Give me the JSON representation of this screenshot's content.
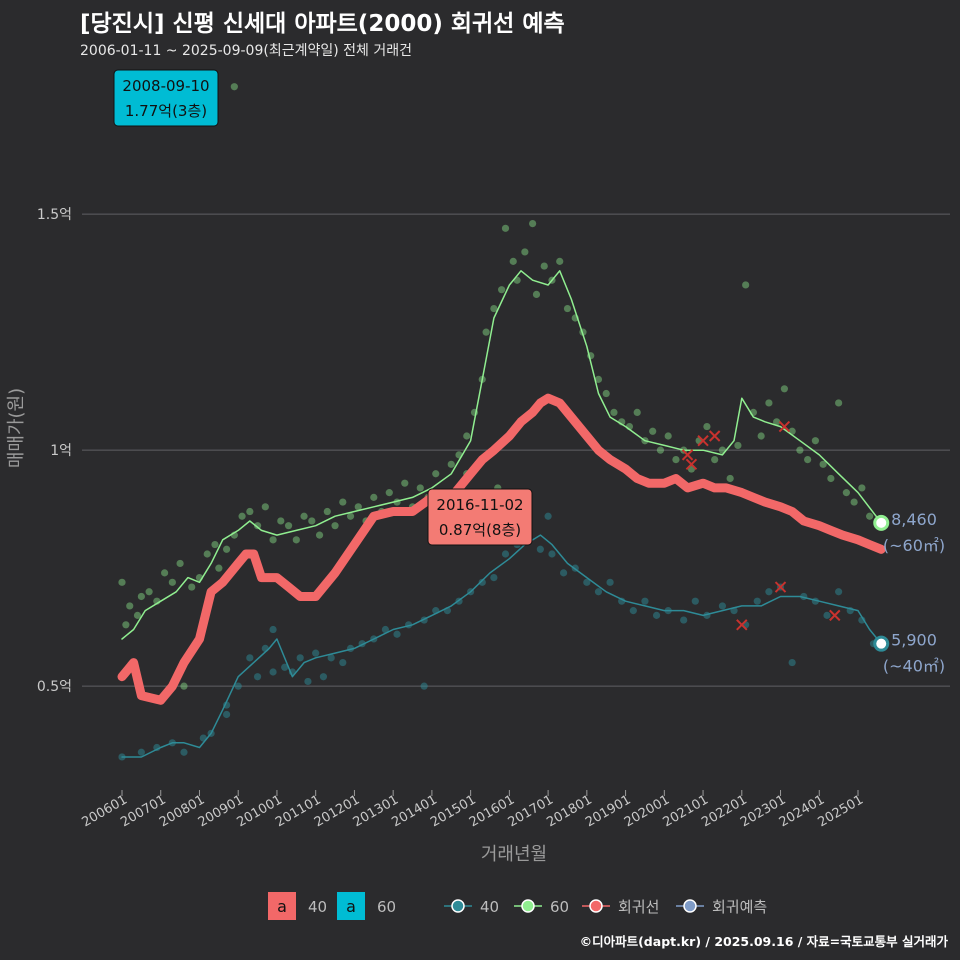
{
  "header": {
    "title": "[당진시] 신평 신세대 아파트(2000) 회귀선 예측",
    "subtitle": "2006-01-11 ~ 2025-09-09(최근계약일) 전체 거래건"
  },
  "footer": {
    "credit": "©디아파트(dapt.kr) / 2025.09.16 / 자료=국토교통부 실거래가"
  },
  "chart_data": {
    "type": "line",
    "xlabel": "거래년월",
    "ylabel": "매매가(원)",
    "xlim": [
      2006.0,
      2025.8
    ],
    "ylim": [
      0.28,
      1.78
    ],
    "x_ticks": [
      {
        "label": "200601",
        "value": 2006.0
      },
      {
        "label": "200701",
        "value": 2007.0
      },
      {
        "label": "200801",
        "value": 2008.0
      },
      {
        "label": "200901",
        "value": 2009.0
      },
      {
        "label": "201001",
        "value": 2010.0
      },
      {
        "label": "201101",
        "value": 2011.0
      },
      {
        "label": "201201",
        "value": 2012.0
      },
      {
        "label": "201301",
        "value": 2013.0
      },
      {
        "label": "201401",
        "value": 2014.0
      },
      {
        "label": "201501",
        "value": 2015.0
      },
      {
        "label": "201601",
        "value": 2016.0
      },
      {
        "label": "201701",
        "value": 2017.0
      },
      {
        "label": "201801",
        "value": 2018.0
      },
      {
        "label": "201901",
        "value": 2019.0
      },
      {
        "label": "202001",
        "value": 2020.0
      },
      {
        "label": "202101",
        "value": 2021.0
      },
      {
        "label": "202201",
        "value": 2022.0
      },
      {
        "label": "202301",
        "value": 2023.0
      },
      {
        "label": "202401",
        "value": 2024.0
      },
      {
        "label": "202501",
        "value": 2025.0
      }
    ],
    "y_ticks": [
      {
        "label": "0.5억",
        "value": 0.5
      },
      {
        "label": "1억",
        "value": 1.0
      },
      {
        "label": "1.5억",
        "value": 1.5
      }
    ],
    "colors": {
      "s40": "#2e8b97",
      "s60": "#90ee90",
      "regression": "#f26868",
      "forecast": "#7f9cc8",
      "note_high": "#00bcd4",
      "note_low": "#f37b74",
      "background": "#2b2b2d",
      "grid": "#606064"
    },
    "series": [
      {
        "name": "40",
        "x": [
          2006.0,
          2006.5,
          2007.0,
          2007.3,
          2007.6,
          2008.0,
          2008.3,
          2008.6,
          2009.0,
          2009.4,
          2009.8,
          2010.0,
          2010.4,
          2010.7,
          2011.0,
          2011.5,
          2012.0,
          2012.5,
          2013.0,
          2013.5,
          2014.0,
          2014.5,
          2015.0,
          2015.5,
          2016.0,
          2016.4,
          2016.8,
          2017.1,
          2017.5,
          2018.0,
          2018.5,
          2019.0,
          2019.5,
          2020.0,
          2020.5,
          2021.0,
          2021.5,
          2022.0,
          2022.5,
          2023.0,
          2023.5,
          2024.0,
          2024.5,
          2025.0,
          2025.3,
          2025.6
        ],
        "values": [
          0.35,
          0.35,
          0.37,
          0.38,
          0.38,
          0.37,
          0.4,
          0.45,
          0.52,
          0.55,
          0.58,
          0.6,
          0.52,
          0.55,
          0.56,
          0.57,
          0.58,
          0.6,
          0.62,
          0.63,
          0.65,
          0.67,
          0.7,
          0.74,
          0.77,
          0.8,
          0.82,
          0.8,
          0.76,
          0.73,
          0.7,
          0.68,
          0.67,
          0.66,
          0.66,
          0.65,
          0.66,
          0.67,
          0.67,
          0.69,
          0.69,
          0.68,
          0.67,
          0.66,
          0.62,
          0.59
        ]
      },
      {
        "name": "60",
        "x": [
          2006.0,
          2006.3,
          2006.6,
          2007.0,
          2007.4,
          2007.7,
          2008.0,
          2008.3,
          2008.6,
          2009.0,
          2009.3,
          2009.6,
          2010.0,
          2010.5,
          2011.0,
          2011.5,
          2012.0,
          2012.5,
          2013.0,
          2013.5,
          2014.0,
          2014.5,
          2015.0,
          2015.3,
          2015.6,
          2016.0,
          2016.3,
          2016.6,
          2017.0,
          2017.3,
          2017.6,
          2018.0,
          2018.3,
          2018.6,
          2019.0,
          2019.5,
          2020.0,
          2020.5,
          2021.0,
          2021.5,
          2021.8,
          2022.0,
          2022.3,
          2022.6,
          2023.0,
          2023.5,
          2024.0,
          2024.5,
          2025.0,
          2025.6
        ],
        "values": [
          0.6,
          0.62,
          0.66,
          0.68,
          0.7,
          0.73,
          0.72,
          0.76,
          0.81,
          0.83,
          0.85,
          0.83,
          0.82,
          0.83,
          0.84,
          0.86,
          0.87,
          0.88,
          0.89,
          0.9,
          0.92,
          0.95,
          1.02,
          1.15,
          1.28,
          1.35,
          1.38,
          1.36,
          1.35,
          1.38,
          1.32,
          1.22,
          1.12,
          1.07,
          1.05,
          1.02,
          1.01,
          1.0,
          1.0,
          0.99,
          1.02,
          1.11,
          1.07,
          1.06,
          1.05,
          1.02,
          0.99,
          0.95,
          0.91,
          0.846
        ]
      },
      {
        "name": "회귀선",
        "x": [
          2006.0,
          2006.3,
          2006.5,
          2007.0,
          2007.3,
          2007.6,
          2008.0,
          2008.3,
          2008.6,
          2009.0,
          2009.2,
          2009.4,
          2009.6,
          2010.0,
          2010.3,
          2010.6,
          2011.0,
          2011.5,
          2012.0,
          2012.5,
          2013.0,
          2013.5,
          2014.0,
          2014.3,
          2014.6,
          2015.0,
          2015.3,
          2015.6,
          2016.0,
          2016.3,
          2016.6,
          2016.8,
          2017.0,
          2017.3,
          2017.6,
          2018.0,
          2018.3,
          2018.6,
          2019.0,
          2019.3,
          2019.6,
          2020.0,
          2020.3,
          2020.6,
          2021.0,
          2021.3,
          2021.6,
          2022.0,
          2022.3,
          2022.6,
          2023.0,
          2023.3,
          2023.6,
          2024.0,
          2024.3,
          2024.6,
          2025.0,
          2025.3,
          2025.6
        ],
        "values": [
          0.52,
          0.55,
          0.48,
          0.47,
          0.5,
          0.55,
          0.6,
          0.7,
          0.72,
          0.76,
          0.78,
          0.78,
          0.73,
          0.73,
          0.71,
          0.69,
          0.69,
          0.74,
          0.8,
          0.86,
          0.87,
          0.87,
          0.9,
          0.89,
          0.91,
          0.95,
          0.98,
          1.0,
          1.03,
          1.06,
          1.08,
          1.1,
          1.11,
          1.1,
          1.07,
          1.03,
          1.0,
          0.98,
          0.96,
          0.94,
          0.93,
          0.93,
          0.94,
          0.92,
          0.93,
          0.92,
          0.92,
          0.91,
          0.9,
          0.89,
          0.88,
          0.87,
          0.85,
          0.84,
          0.83,
          0.82,
          0.81,
          0.8,
          0.79
        ]
      },
      {
        "name": "회귀예측",
        "x": [],
        "values": []
      }
    ],
    "scatter_60": [
      [
        2006.0,
        0.72
      ],
      [
        2006.1,
        0.63
      ],
      [
        2006.2,
        0.67
      ],
      [
        2006.4,
        0.65
      ],
      [
        2006.5,
        0.69
      ],
      [
        2006.7,
        0.7
      ],
      [
        2006.9,
        0.68
      ],
      [
        2007.1,
        0.74
      ],
      [
        2007.3,
        0.72
      ],
      [
        2007.5,
        0.76
      ],
      [
        2007.8,
        0.71
      ],
      [
        2008.0,
        0.73
      ],
      [
        2008.2,
        0.78
      ],
      [
        2008.4,
        0.8
      ],
      [
        2008.5,
        0.75
      ],
      [
        2008.7,
        0.79
      ],
      [
        2008.9,
        0.82
      ],
      [
        2009.1,
        0.86
      ],
      [
        2009.3,
        0.87
      ],
      [
        2009.5,
        0.84
      ],
      [
        2009.7,
        0.88
      ],
      [
        2009.9,
        0.81
      ],
      [
        2010.1,
        0.85
      ],
      [
        2010.3,
        0.84
      ],
      [
        2010.5,
        0.81
      ],
      [
        2010.7,
        0.86
      ],
      [
        2010.9,
        0.85
      ],
      [
        2011.1,
        0.82
      ],
      [
        2011.3,
        0.87
      ],
      [
        2011.5,
        0.84
      ],
      [
        2011.7,
        0.89
      ],
      [
        2011.9,
        0.86
      ],
      [
        2012.1,
        0.88
      ],
      [
        2012.3,
        0.85
      ],
      [
        2012.5,
        0.9
      ],
      [
        2012.7,
        0.87
      ],
      [
        2012.9,
        0.91
      ],
      [
        2013.1,
        0.89
      ],
      [
        2013.3,
        0.93
      ],
      [
        2013.5,
        0.88
      ],
      [
        2013.7,
        0.92
      ],
      [
        2013.9,
        0.9
      ],
      [
        2014.1,
        0.95
      ],
      [
        2014.3,
        0.91
      ],
      [
        2014.5,
        0.97
      ],
      [
        2014.7,
        0.99
      ],
      [
        2014.9,
        1.03
      ],
      [
        2015.1,
        1.08
      ],
      [
        2015.3,
        1.15
      ],
      [
        2015.4,
        1.25
      ],
      [
        2015.6,
        1.3
      ],
      [
        2015.8,
        1.34
      ],
      [
        2015.9,
        1.47
      ],
      [
        2016.1,
        1.4
      ],
      [
        2016.2,
        1.36
      ],
      [
        2016.4,
        1.42
      ],
      [
        2016.6,
        1.48
      ],
      [
        2016.7,
        1.33
      ],
      [
        2016.9,
        1.39
      ],
      [
        2017.1,
        1.36
      ],
      [
        2017.3,
        1.4
      ],
      [
        2017.5,
        1.3
      ],
      [
        2017.7,
        1.28
      ],
      [
        2017.9,
        1.25
      ],
      [
        2018.1,
        1.2
      ],
      [
        2018.3,
        1.15
      ],
      [
        2018.5,
        1.12
      ],
      [
        2018.7,
        1.08
      ],
      [
        2018.9,
        1.06
      ],
      [
        2019.1,
        1.05
      ],
      [
        2019.3,
        1.08
      ],
      [
        2019.5,
        1.02
      ],
      [
        2019.7,
        1.04
      ],
      [
        2019.9,
        1.0
      ],
      [
        2020.1,
        1.03
      ],
      [
        2020.3,
        0.98
      ],
      [
        2020.5,
        1.0
      ],
      [
        2020.7,
        0.96
      ],
      [
        2020.9,
        1.02
      ],
      [
        2021.1,
        1.05
      ],
      [
        2021.3,
        0.98
      ],
      [
        2021.5,
        1.0
      ],
      [
        2021.7,
        0.94
      ],
      [
        2021.9,
        1.01
      ],
      [
        2022.1,
        1.35
      ],
      [
        2022.3,
        1.08
      ],
      [
        2022.5,
        1.03
      ],
      [
        2022.7,
        1.1
      ],
      [
        2022.9,
        1.06
      ],
      [
        2023.1,
        1.13
      ],
      [
        2023.3,
        1.04
      ],
      [
        2023.5,
        1.0
      ],
      [
        2023.7,
        0.98
      ],
      [
        2023.9,
        1.02
      ],
      [
        2024.1,
        0.97
      ],
      [
        2024.3,
        0.94
      ],
      [
        2024.5,
        1.1
      ],
      [
        2024.7,
        0.91
      ],
      [
        2024.9,
        0.89
      ],
      [
        2025.1,
        0.92
      ],
      [
        2025.3,
        0.86
      ],
      [
        2025.5,
        0.85
      ],
      [
        2007.6,
        0.5
      ],
      [
        2008.9,
        1.77
      ],
      [
        2015.7,
        0.92
      ],
      [
        2014.9,
        0.95
      ],
      [
        2016.5,
        0.82
      ]
    ],
    "scatter_40": [
      [
        2006.0,
        0.35
      ],
      [
        2006.5,
        0.36
      ],
      [
        2006.9,
        0.37
      ],
      [
        2007.3,
        0.38
      ],
      [
        2007.6,
        0.36
      ],
      [
        2008.1,
        0.39
      ],
      [
        2008.3,
        0.4
      ],
      [
        2008.7,
        0.46
      ],
      [
        2009.0,
        0.5
      ],
      [
        2009.3,
        0.56
      ],
      [
        2009.5,
        0.52
      ],
      [
        2009.7,
        0.58
      ],
      [
        2009.9,
        0.62
      ],
      [
        2010.2,
        0.54
      ],
      [
        2010.4,
        0.53
      ],
      [
        2010.6,
        0.56
      ],
      [
        2010.8,
        0.51
      ],
      [
        2011.0,
        0.57
      ],
      [
        2011.2,
        0.52
      ],
      [
        2011.4,
        0.56
      ],
      [
        2011.7,
        0.55
      ],
      [
        2011.9,
        0.58
      ],
      [
        2012.2,
        0.59
      ],
      [
        2012.5,
        0.6
      ],
      [
        2012.8,
        0.62
      ],
      [
        2013.1,
        0.61
      ],
      [
        2013.4,
        0.63
      ],
      [
        2013.8,
        0.64
      ],
      [
        2014.1,
        0.66
      ],
      [
        2014.4,
        0.66
      ],
      [
        2014.7,
        0.68
      ],
      [
        2015.0,
        0.7
      ],
      [
        2015.3,
        0.72
      ],
      [
        2015.6,
        0.73
      ],
      [
        2015.9,
        0.78
      ],
      [
        2016.2,
        0.8
      ],
      [
        2016.5,
        0.82
      ],
      [
        2016.8,
        0.79
      ],
      [
        2017.1,
        0.78
      ],
      [
        2017.4,
        0.74
      ],
      [
        2017.7,
        0.75
      ],
      [
        2018.0,
        0.72
      ],
      [
        2018.3,
        0.7
      ],
      [
        2018.6,
        0.72
      ],
      [
        2018.9,
        0.68
      ],
      [
        2019.2,
        0.66
      ],
      [
        2019.5,
        0.68
      ],
      [
        2019.8,
        0.65
      ],
      [
        2020.1,
        0.66
      ],
      [
        2020.5,
        0.64
      ],
      [
        2020.8,
        0.68
      ],
      [
        2021.1,
        0.65
      ],
      [
        2021.5,
        0.67
      ],
      [
        2021.8,
        0.66
      ],
      [
        2022.1,
        0.63
      ],
      [
        2022.4,
        0.68
      ],
      [
        2022.7,
        0.7
      ],
      [
        2023.0,
        0.71
      ],
      [
        2023.3,
        0.55
      ],
      [
        2023.6,
        0.69
      ],
      [
        2023.9,
        0.68
      ],
      [
        2024.2,
        0.65
      ],
      [
        2024.5,
        0.7
      ],
      [
        2024.8,
        0.66
      ],
      [
        2025.1,
        0.64
      ],
      [
        2025.4,
        0.59
      ],
      [
        2013.8,
        0.5
      ],
      [
        2017.0,
        0.86
      ],
      [
        2009.9,
        0.53
      ],
      [
        2008.7,
        0.44
      ]
    ],
    "cancelled": [
      [
        2020.7,
        0.97
      ],
      [
        2021.0,
        1.02
      ],
      [
        2021.3,
        1.03
      ],
      [
        2022.0,
        0.63
      ],
      [
        2023.0,
        0.71
      ],
      [
        2023.1,
        1.05
      ],
      [
        2024.4,
        0.65
      ],
      [
        2020.6,
        0.99
      ]
    ],
    "end_points": [
      {
        "series": "60",
        "x": 2025.6,
        "y": 0.846,
        "value": "8,460",
        "area": "(~60㎡)"
      },
      {
        "series": "40",
        "x": 2025.6,
        "y": 0.59,
        "value": "5,900",
        "area": "(~40㎡)"
      }
    ],
    "annotations": [
      {
        "date": "2008-09-10",
        "price": "1.77억(3층)",
        "x": 2008.69,
        "y": 1.77,
        "style": "high"
      },
      {
        "date": "2016-11-02",
        "price": "0.87억(8층)",
        "x": 2016.84,
        "y": 0.87,
        "style": "low"
      }
    ],
    "legend": {
      "placement": "bottom",
      "fill_entries": [
        {
          "key": "a",
          "label": "40",
          "color": "#f26868"
        },
        {
          "key": "a",
          "label": "60",
          "color": "#00bcd4"
        }
      ],
      "line_entries": [
        {
          "label": "40",
          "color": "#2e8b97"
        },
        {
          "label": "60",
          "color": "#90ee90"
        },
        {
          "label": "회귀선",
          "color": "#f26868"
        },
        {
          "label": "회귀예측",
          "color": "#7f9cc8"
        }
      ]
    }
  }
}
